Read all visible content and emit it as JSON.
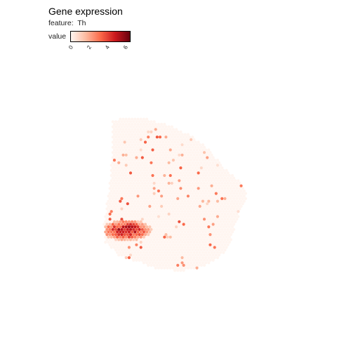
{
  "chart_data": {
    "type": "scatter",
    "title": "Gene expression",
    "subtitle_label": "feature:",
    "feature": "Th",
    "legend_title": "value",
    "color_scale": {
      "min": 0,
      "max": 6.5,
      "ticks": [
        "0",
        "2",
        "4",
        "6"
      ],
      "tick_values": [
        0,
        2,
        4,
        6
      ],
      "colors": [
        "#fff5f0",
        "#fcbba1",
        "#fb6a4a",
        "#cb181d",
        "#67000d"
      ]
    },
    "background_spot_color": "#fff5f0",
    "grid": false,
    "legend_position": "top-left"
  }
}
